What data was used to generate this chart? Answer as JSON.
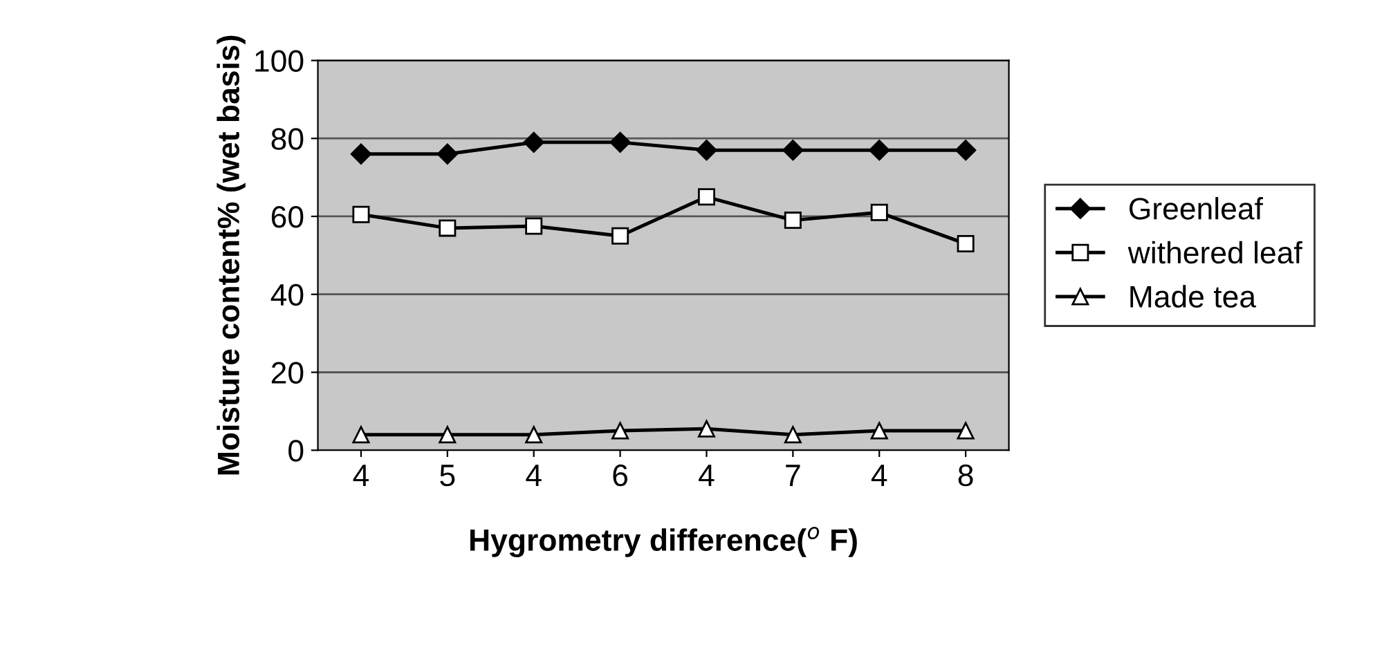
{
  "chart_data": {
    "type": "line",
    "xlabel": "Hygrometry difference($^{o}$ F)",
    "ylabel": "Moisture content% (wet basis)",
    "categories": [
      "4",
      "5",
      "4",
      "6",
      "4",
      "7",
      "4",
      "8"
    ],
    "series": [
      {
        "name": "Greenleaf",
        "color": "#000000",
        "marker": "diamond",
        "values": [
          76,
          76,
          79,
          79,
          77,
          77,
          77,
          77
        ]
      },
      {
        "name": "withered leaf",
        "color": "#000000",
        "marker": "square",
        "values": [
          60.5,
          57,
          57.5,
          55,
          65,
          59,
          61,
          53
        ]
      },
      {
        "name": "Made tea",
        "color": "#000000",
        "marker": "triangle",
        "values": [
          4,
          4,
          4,
          5,
          5.5,
          4,
          5,
          5
        ]
      }
    ],
    "ylim": [
      0,
      100
    ],
    "yticks": [
      0,
      20,
      40,
      60,
      80,
      100
    ],
    "grid": "y",
    "legend": "right"
  }
}
